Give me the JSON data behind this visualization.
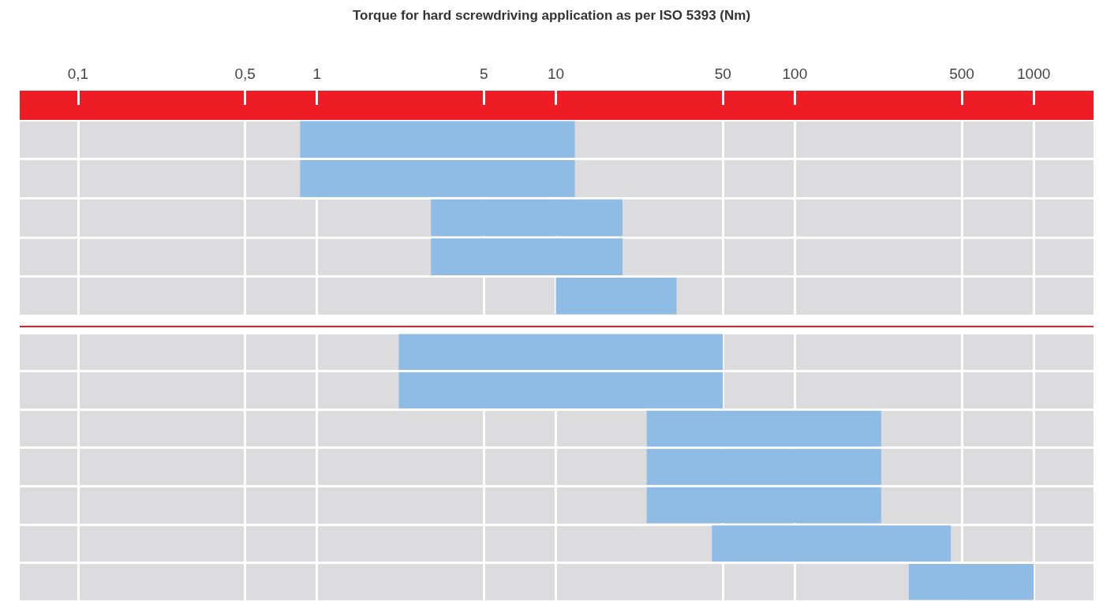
{
  "chart_data": [
    {
      "type": "bar",
      "orientation": "horizontal",
      "title": "Torque for hard screwdriving application as per ISO 5393 (Nm)",
      "categories": [
        null,
        null,
        null,
        null,
        null
      ],
      "base": [
        0.85,
        0.85,
        3,
        3,
        10
      ],
      "values": [
        11.15,
        11.15,
        16,
        16,
        22
      ],
      "color": "#8ebce5",
      "log": "x",
      "xlim": [
        0.057,
        1780
      ],
      "xticks": [
        {
          "value": 0.1,
          "label": "0,1"
        },
        {
          "value": 0.5,
          "label": "0,5"
        },
        1,
        5,
        10,
        50,
        100,
        500,
        1000
      ],
      "tick_labels": "x",
      "grid": true
    },
    {
      "type": "bar",
      "orientation": "horizontal",
      "categories": [
        null,
        null,
        null,
        null,
        null,
        null,
        null
      ],
      "base": [
        2.2,
        2.2,
        24,
        24,
        24,
        45,
        300
      ],
      "values": [
        47.8,
        47.8,
        206,
        206,
        206,
        405,
        700
      ],
      "color": "#8ebce5",
      "log": "x",
      "xlim": [
        0.057,
        1780
      ],
      "xticks": [
        0.1,
        0.5,
        1,
        5,
        10,
        50,
        100,
        500,
        1000
      ],
      "tick_labels": false,
      "grid": true
    }
  ]
}
